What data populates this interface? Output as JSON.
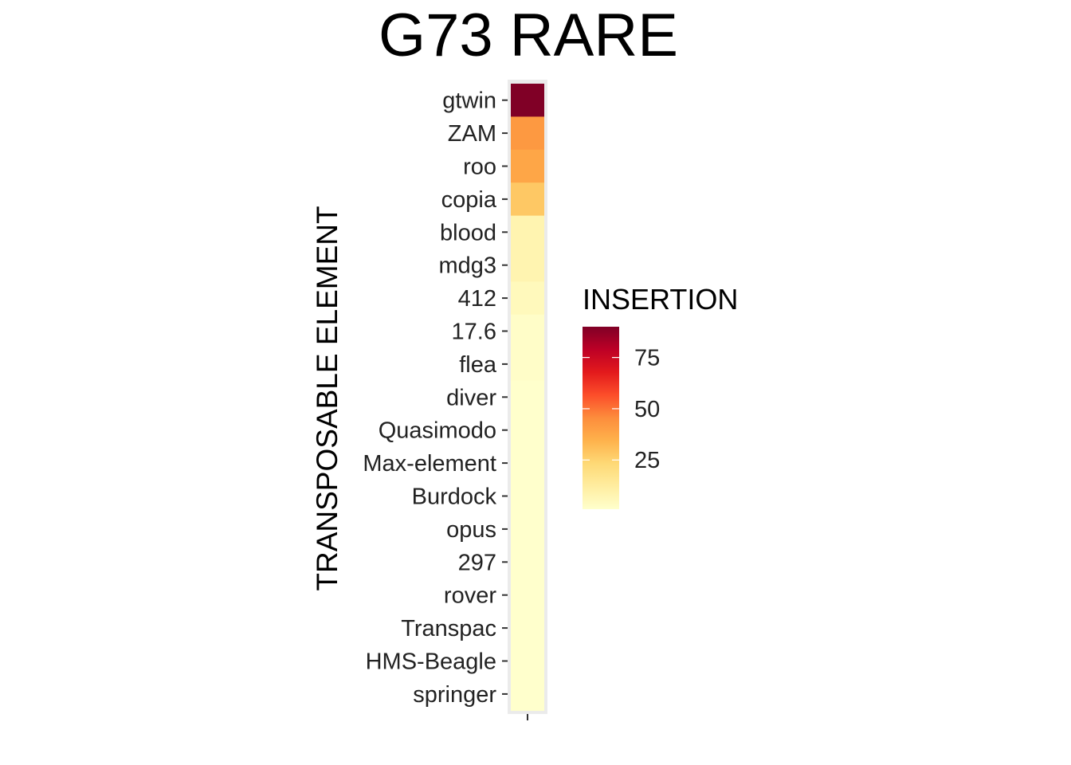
{
  "chart_data": {
    "type": "heatmap",
    "title": "G73 RARE",
    "xlabel": "",
    "ylabel": "TRANSPOSABLE ELEMENT",
    "categories": [
      "gtwin",
      "ZAM",
      "roo",
      "copia",
      "blood",
      "mdg3",
      "412",
      "17.6",
      "flea",
      "diver",
      "Quasimodo",
      "Max-element",
      "Burdock",
      "opus",
      "297",
      "rover",
      "Transpac",
      "HMS-Beagle",
      "springer"
    ],
    "values": [
      90,
      42,
      38,
      28,
      8,
      8,
      5,
      2,
      2,
      1,
      1,
      1,
      1,
      1,
      1,
      1,
      1,
      1,
      1
    ],
    "legend": {
      "title": "INSERTION",
      "placement": "right",
      "ticks": [
        25,
        50,
        75
      ],
      "range": [
        1,
        90
      ]
    },
    "color_scale": [
      "#FFFFCC",
      "#FFEDA0",
      "#FED976",
      "#FEB24C",
      "#FD8D3C",
      "#FC4E2A",
      "#E31A1C",
      "#BD0026",
      "#800026"
    ],
    "panel_background": "#EBEBEB",
    "grid": true
  }
}
